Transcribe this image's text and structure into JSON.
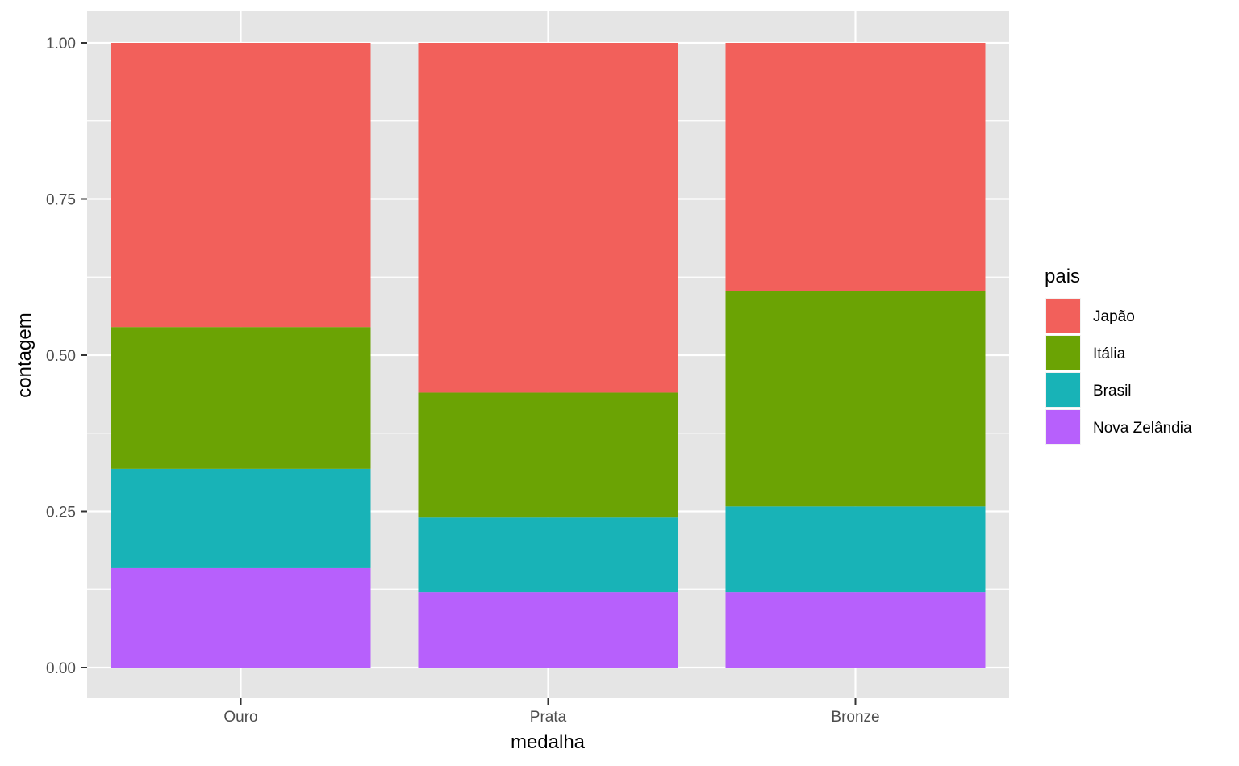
{
  "chart_data": {
    "type": "bar",
    "stacked": true,
    "position": "fill",
    "categories": [
      "Ouro",
      "Prata",
      "Bronze"
    ],
    "series": [
      {
        "name": "Japão",
        "color": "#F2605B",
        "values": [
          0.455,
          0.56,
          0.397
        ]
      },
      {
        "name": "Itália",
        "color": "#6BA304",
        "values": [
          0.227,
          0.2,
          0.345
        ]
      },
      {
        "name": "Brasil",
        "color": "#18B3B7",
        "values": [
          0.159,
          0.12,
          0.138
        ]
      },
      {
        "name": "Nova Zelândia",
        "color": "#B760FC",
        "values": [
          0.159,
          0.12,
          0.12
        ]
      }
    ],
    "stack_order_bottom_to_top": [
      "Nova Zelândia",
      "Brasil",
      "Itália",
      "Japão"
    ],
    "xlabel": "medalha",
    "ylabel": "contagem",
    "ylim": [
      -0.05,
      1.05
    ],
    "yticks": [
      "0.00",
      "0.25",
      "0.50",
      "0.75",
      "1.00"
    ],
    "ytick_values": [
      0,
      0.25,
      0.5,
      0.75,
      1.0
    ],
    "grid": true,
    "legend": {
      "title": "pais",
      "placement": "right"
    },
    "panel_background": "#E5E5E5",
    "grid_color": "#FFFFFF"
  }
}
